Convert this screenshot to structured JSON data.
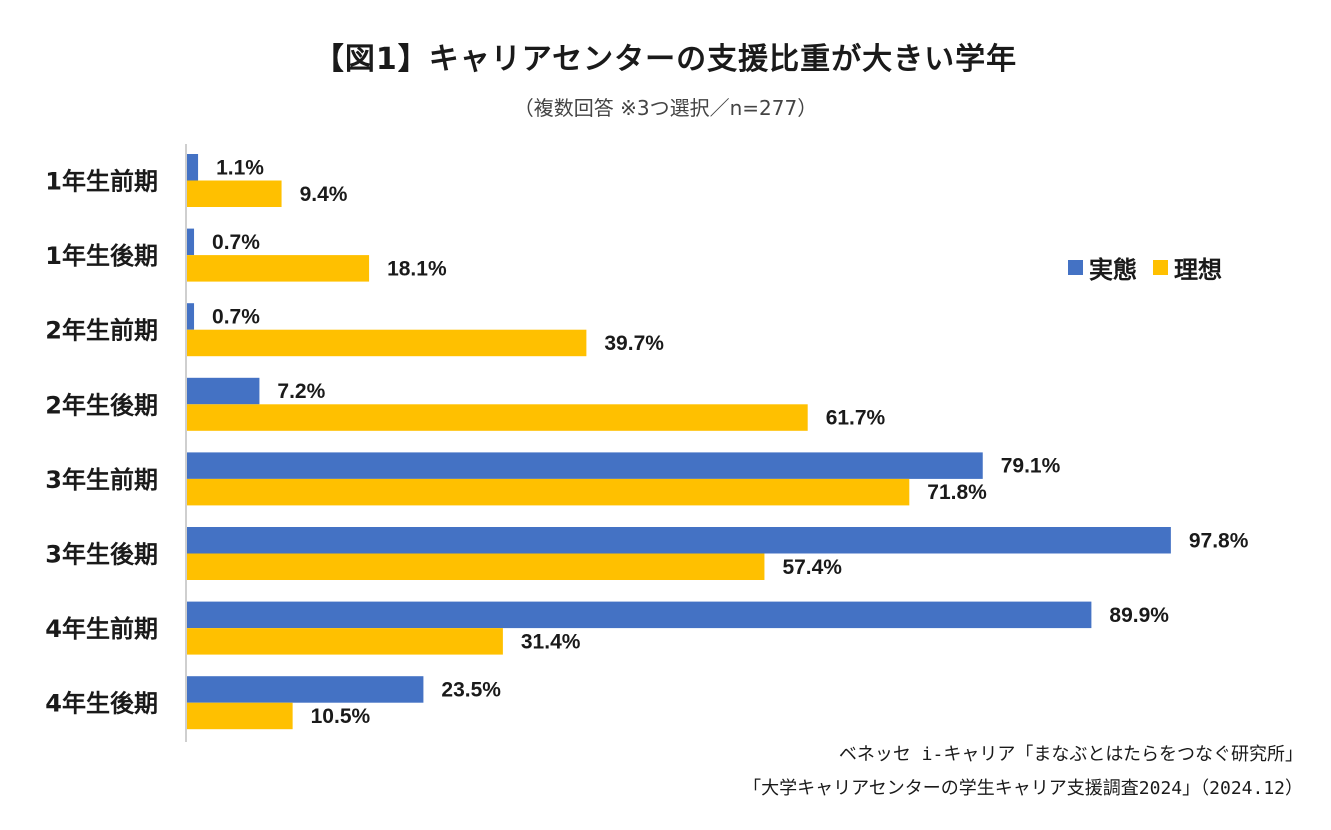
{
  "chart_data": {
    "type": "bar",
    "orientation": "horizontal",
    "title": "【図1】キャリアセンターの支援比重が大きい学年",
    "subtitle": "（複数回答 ※3つ選択／n=277）",
    "categories": [
      "1年生前期",
      "1年生後期",
      "2年生前期",
      "2年生後期",
      "3年生前期",
      "3年生後期",
      "4年生前期",
      "4年生後期"
    ],
    "series": [
      {
        "name": "実態",
        "color": "#4472C4",
        "values": [
          1.1,
          0.7,
          0.7,
          7.2,
          79.1,
          97.8,
          89.9,
          23.5
        ]
      },
      {
        "name": "理想",
        "color": "#FFC000",
        "values": [
          9.4,
          18.1,
          39.7,
          61.7,
          71.8,
          57.4,
          31.4,
          10.5
        ]
      }
    ],
    "value_suffix": "%",
    "xlim": [
      0,
      100
    ],
    "grid": false,
    "legend_position": "right"
  },
  "source": {
    "line1": "ベネッセ i-キャリア「まなぶとはたらをつなぐ研究所」",
    "line2": "「大学キャリアセンターの学生キャリア支援調査2024」（2024.12）"
  }
}
